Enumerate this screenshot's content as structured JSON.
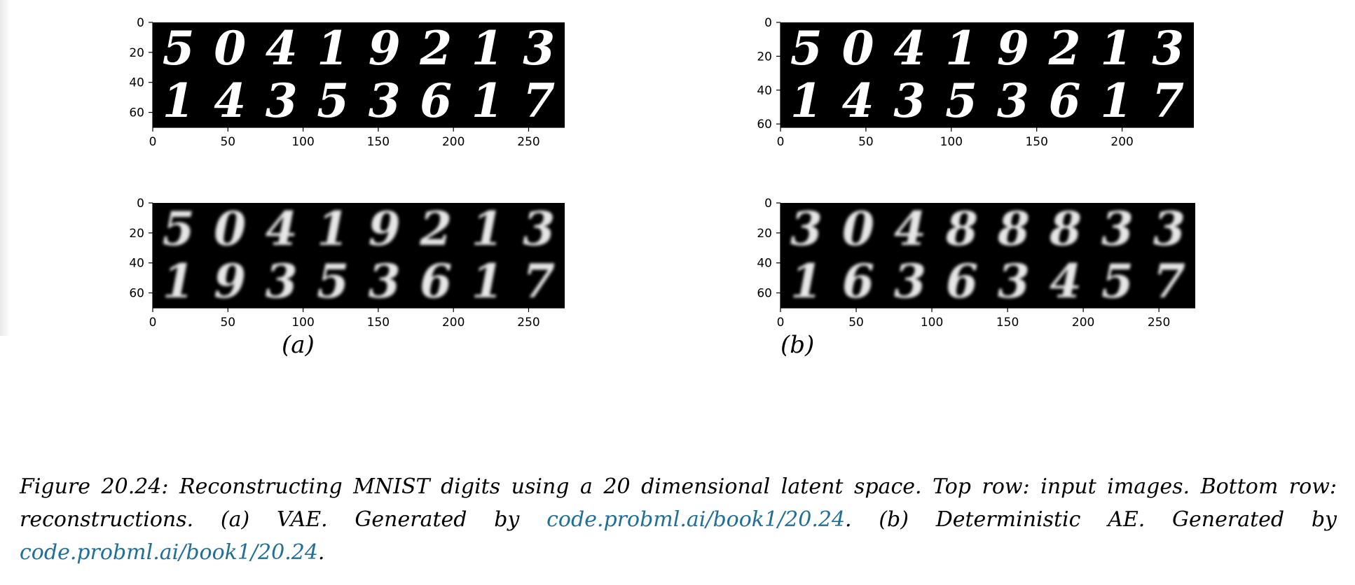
{
  "panels": [
    {
      "label": "(a)",
      "plots": [
        {
          "role": "input",
          "digits": [
            "5",
            "0",
            "4",
            "1",
            "9",
            "2",
            "1",
            "3",
            "1",
            "4",
            "3",
            "5",
            "3",
            "6",
            "1",
            "7"
          ],
          "x_ticks": [
            "0",
            "50",
            "100",
            "150",
            "200",
            "250"
          ],
          "y_ticks": [
            "0",
            "20",
            "40",
            "60"
          ],
          "xlim": [
            0,
            274
          ],
          "ylim": [
            70,
            0
          ]
        },
        {
          "role": "reconstruction",
          "digits": [
            "5",
            "0",
            "4",
            "1",
            "9",
            "2",
            "1",
            "3",
            "1",
            "9",
            "3",
            "5",
            "3",
            "6",
            "1",
            "7"
          ],
          "x_ticks": [
            "0",
            "50",
            "100",
            "150",
            "200",
            "250"
          ],
          "y_ticks": [
            "0",
            "20",
            "40",
            "60"
          ],
          "xlim": [
            0,
            274
          ],
          "ylim": [
            70,
            0
          ]
        }
      ]
    },
    {
      "label": "(b)",
      "plots": [
        {
          "role": "input",
          "digits": [
            "5",
            "0",
            "4",
            "1",
            "9",
            "2",
            "1",
            "3",
            "1",
            "4",
            "3",
            "5",
            "3",
            "6",
            "1",
            "7"
          ],
          "x_ticks": [
            "0",
            "50",
            "100",
            "150",
            "200"
          ],
          "y_ticks": [
            "0",
            "20",
            "40",
            "60"
          ],
          "xlim": [
            0,
            242
          ],
          "ylim": [
            62,
            0
          ]
        },
        {
          "role": "reconstruction",
          "digits": [
            "3",
            "0",
            "4",
            "8",
            "8",
            "8",
            "3",
            "3",
            "1",
            "6",
            "3",
            "6",
            "3",
            "4",
            "5",
            "7"
          ],
          "x_ticks": [
            "0",
            "50",
            "100",
            "150",
            "200",
            "250"
          ],
          "y_ticks": [
            "0",
            "20",
            "40",
            "60"
          ],
          "xlim": [
            0,
            274
          ],
          "ylim": [
            70,
            0
          ]
        }
      ]
    }
  ],
  "caption": {
    "lead": "Figure 20.24: Reconstructing MNIST digits using a 20 dimensional latent space. Top row: input images. Bottom row: reconstructions. (a) VAE. Generated by ",
    "link1": "code.probml.ai/book1/20.24",
    "middle": ". (b) Deterministic AE. Generated by ",
    "link2": "code.probml.ai/book1/20.24",
    "tail": "."
  },
  "colors": {
    "image_bg": "#000000",
    "digit": "#ffffff",
    "link": "#1f6f99"
  }
}
